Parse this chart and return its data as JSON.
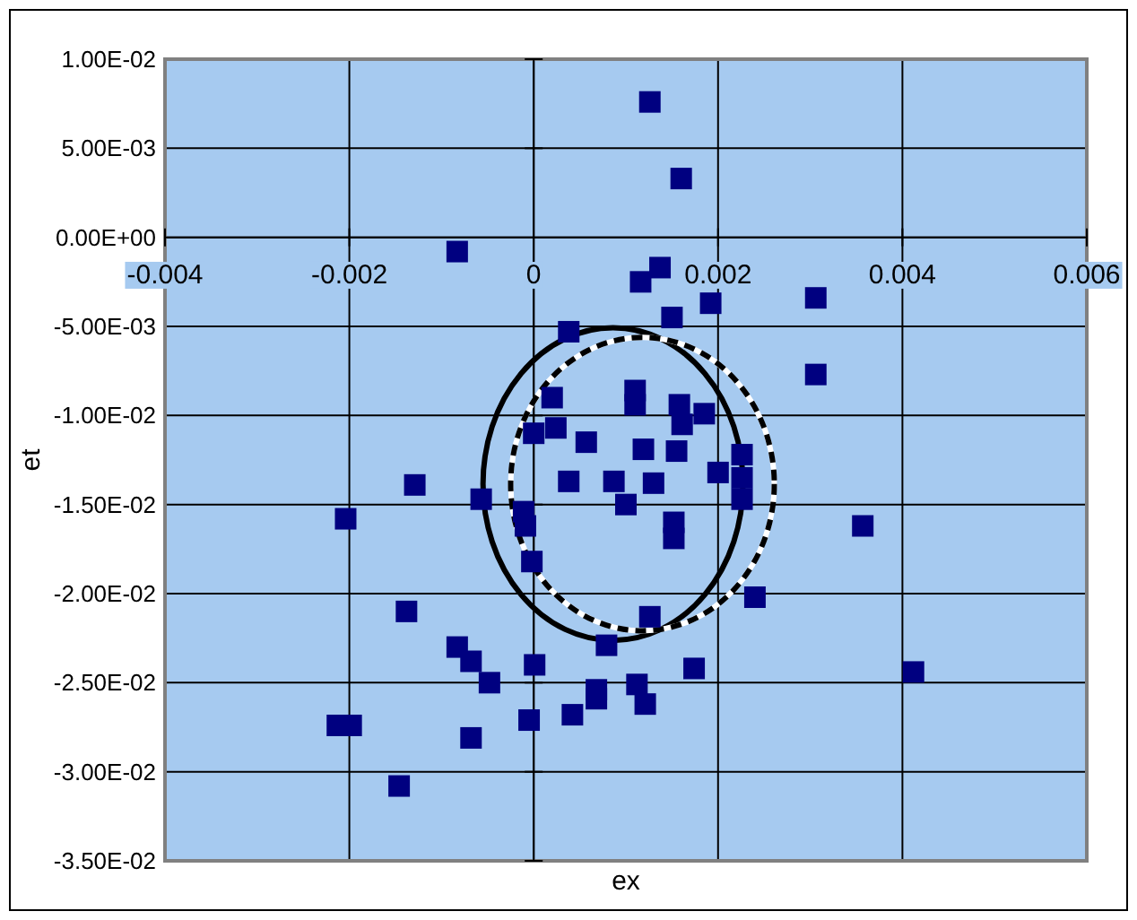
{
  "chart_data": {
    "type": "scatter",
    "xlabel": "ex",
    "ylabel": "et",
    "x": [
      0.00126,
      0.0016,
      -0.00083,
      0.00137,
      0.00116,
      0.00192,
      0.00306,
      0.0015,
      0.00038,
      0.00306,
      0.0002,
      0.0011,
      0.0011,
      0.0,
      0.00024,
      0.00057,
      0.00119,
      0.00158,
      0.00185,
      0.00161,
      0.00155,
      0.00226,
      0.002,
      0.00226,
      0.00226,
      0.0013,
      0.00152,
      0.00152,
      0.00357,
      0.0024,
      0.00126,
      0.00174,
      0.00412,
      0.00112,
      0.00121,
      -0.00129,
      -0.00204,
      -0.00057,
      -0.00011,
      -9e-05,
      -2e-05,
      0.00038,
      0.00087,
      0.001,
      -0.00138,
      -0.00083,
      -0.00068,
      -0.00048,
      1e-05,
      0.00079,
      -0.00213,
      -0.00198,
      -0.00068,
      -0.00146,
      -5e-05,
      0.00042,
      0.00068,
      0.00068
    ],
    "values": [
      0.0076,
      0.0033,
      -0.0008,
      -0.0017,
      -0.0025,
      -0.0037,
      -0.0034,
      -0.0045,
      -0.0053,
      -0.0077,
      -0.009,
      -0.0086,
      -0.0094,
      -0.011,
      -0.0107,
      -0.0115,
      -0.0119,
      -0.0094,
      -0.0099,
      -0.0105,
      -0.012,
      -0.0122,
      -0.0132,
      -0.0135,
      -0.0147,
      -0.0138,
      -0.016,
      -0.0169,
      -0.0162,
      -0.0202,
      -0.0213,
      -0.0242,
      -0.0244,
      -0.0251,
      -0.0262,
      -0.0139,
      -0.0158,
      -0.0147,
      -0.0154,
      -0.0162,
      -0.0182,
      -0.0137,
      -0.0137,
      -0.015,
      -0.021,
      -0.023,
      -0.0238,
      -0.025,
      -0.024,
      -0.0229,
      -0.0274,
      -0.0274,
      -0.0281,
      -0.0308,
      -0.0271,
      -0.0268,
      -0.0259,
      -0.0254
    ],
    "color": "#000080",
    "marker": "square",
    "xlim": [
      -0.004,
      0.006
    ],
    "xticks": [
      -0.004,
      -0.002,
      0,
      0.002,
      0.004,
      0.006
    ],
    "ylim": [
      -0.035,
      0.01
    ],
    "yticks": [
      {
        "value": -0.035,
        "label": "-3.50E-02"
      },
      {
        "value": -0.03,
        "label": "-3.00E-02"
      },
      {
        "value": -0.025,
        "label": "-2.50E-02"
      },
      {
        "value": -0.02,
        "label": "-2.00E-02"
      },
      {
        "value": -0.015,
        "label": "-1.50E-02"
      },
      {
        "value": -0.01,
        "label": "-1.00E-02"
      },
      {
        "value": -0.005,
        "label": "-5.00E-03"
      },
      {
        "value": 0,
        "label": "0.00E+00"
      },
      {
        "value": 0.005,
        "label": "5.00E-03"
      },
      {
        "value": 0.01,
        "label": "1.00E-02"
      }
    ],
    "grid": true
  }
}
